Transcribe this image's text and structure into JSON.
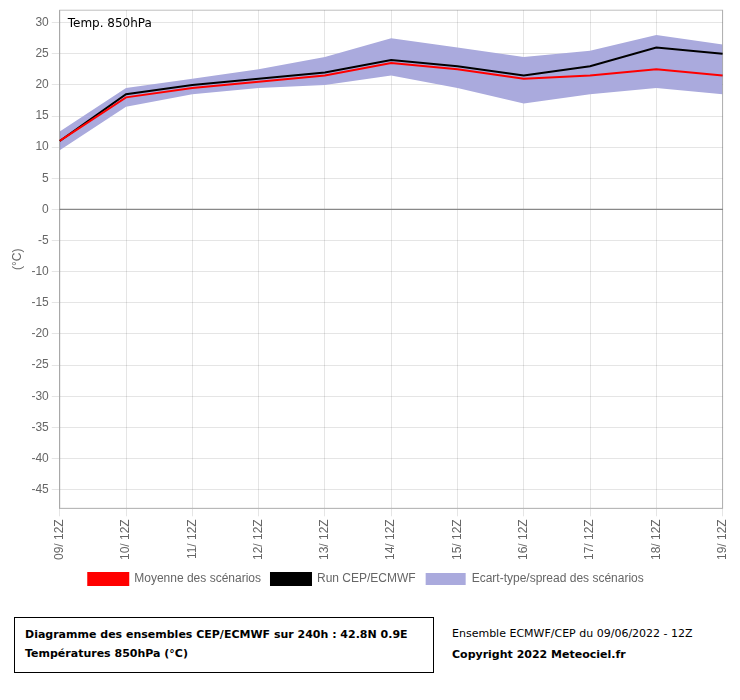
{
  "chart_data": {
    "type": "line",
    "title": "Diagramme des ensembles CEP/ECMWF sur 240h : 42.8N 0.9E",
    "subtitle": "Températures 850hPa (°C)",
    "ylabel": "(°C)",
    "annotations": [
      "Temp. 850hPa",
      "Ensemble ECMWF/CEP du 09/06/2022 - 12Z",
      "Copyright 2022 Meteociel.fr"
    ],
    "categories": [
      "09/ 12Z",
      "10/ 12Z",
      "11/ 12Z",
      "12/ 12Z",
      "13/ 12Z",
      "14/ 12Z",
      "15/ 12Z",
      "16/ 12Z",
      "17/ 12Z",
      "18/ 12Z",
      "19/ 12Z"
    ],
    "series": [
      {
        "name": "Moyenne des scénarios",
        "color": "#ff0000",
        "values": [
          11.0,
          18.0,
          19.5,
          20.5,
          21.5,
          23.5,
          22.5,
          21.0,
          21.5,
          22.5,
          21.5
        ]
      },
      {
        "name": "Run CEP/ECMWF",
        "color": "#000000",
        "values": [
          11.0,
          18.5,
          20.0,
          21.0,
          22.0,
          24.0,
          23.0,
          21.5,
          23.0,
          26.0,
          25.0
        ]
      },
      {
        "name": "Ecart-type/spread des scénarios",
        "type": "band",
        "color": "#aaaadd",
        "upper": [
          12.5,
          19.5,
          21.0,
          22.5,
          24.5,
          27.5,
          26.0,
          24.5,
          25.5,
          28.0,
          26.5
        ],
        "lower": [
          9.5,
          16.5,
          18.5,
          19.5,
          20.0,
          21.5,
          19.5,
          17.0,
          18.5,
          19.5,
          18.5
        ]
      }
    ],
    "reference_lines": [
      {
        "value": 0,
        "color": "#888888"
      }
    ],
    "ylim": [
      -48,
      32
    ],
    "yticks": [
      30,
      25,
      20,
      15,
      10,
      5,
      0,
      -5,
      -10,
      -15,
      -20,
      -25,
      -30,
      -35,
      -40,
      -45
    ],
    "grid": true,
    "legend": "bottom"
  }
}
